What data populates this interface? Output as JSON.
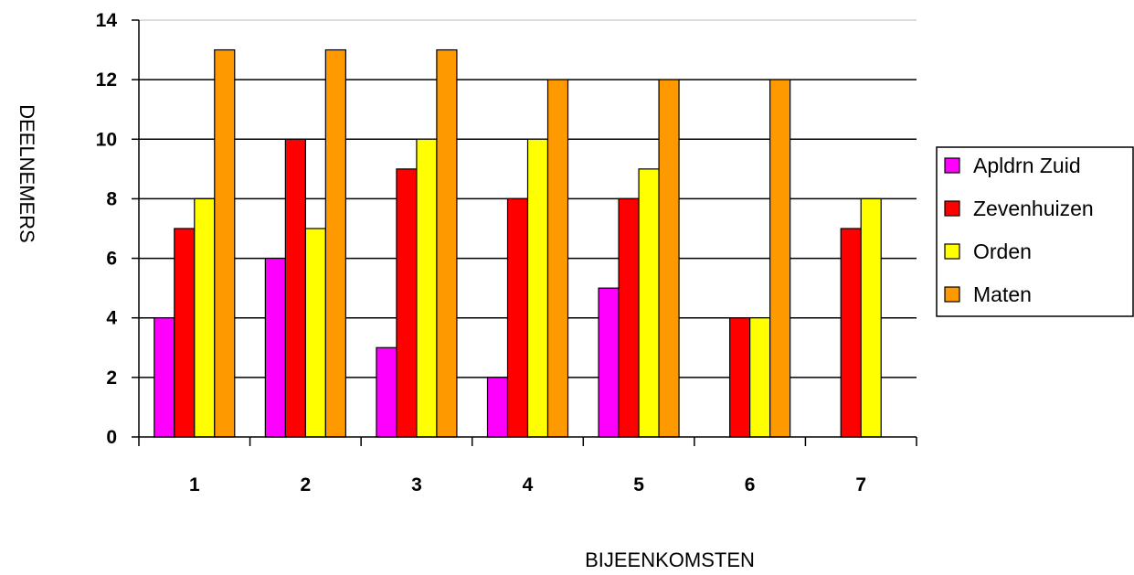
{
  "chart_data": {
    "type": "bar",
    "title": "",
    "xlabel": "BIJEENKOMSTEN",
    "ylabel": "DEELNEMERS",
    "categories": [
      "1",
      "2",
      "3",
      "4",
      "5",
      "6",
      "7"
    ],
    "ylim": [
      0,
      14
    ],
    "yticks": [
      0,
      2,
      4,
      6,
      8,
      10,
      12,
      14
    ],
    "grid": true,
    "legend_position": "right",
    "series": [
      {
        "name": "Apldrn Zuid",
        "color": "#ff00ff",
        "values": [
          4,
          6,
          3,
          2,
          5,
          0,
          0
        ]
      },
      {
        "name": "Zevenhuizen",
        "color": "#ff0000",
        "values": [
          7,
          10,
          9,
          8,
          8,
          4,
          7
        ]
      },
      {
        "name": "Orden",
        "color": "#ffff00",
        "values": [
          8,
          7,
          10,
          10,
          9,
          4,
          8
        ]
      },
      {
        "name": "Maten",
        "color": "#ff9900",
        "values": [
          13,
          13,
          13,
          12,
          12,
          12,
          0
        ]
      }
    ]
  }
}
